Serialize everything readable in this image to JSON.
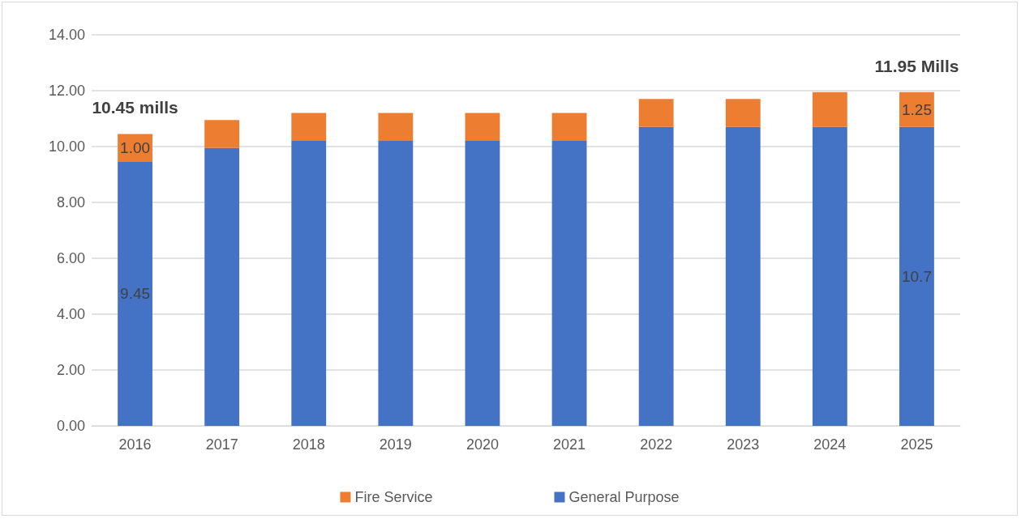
{
  "chart_data": {
    "type": "bar",
    "stacked": true,
    "categories": [
      "2016",
      "2017",
      "2018",
      "2019",
      "2020",
      "2021",
      "2022",
      "2023",
      "2024",
      "2025"
    ],
    "series": [
      {
        "name": "General Purpose",
        "color": "#4472c4",
        "values": [
          9.45,
          9.95,
          10.2,
          10.2,
          10.2,
          10.2,
          10.7,
          10.7,
          10.7,
          10.7
        ],
        "value_labels": [
          "9.45",
          null,
          null,
          null,
          null,
          null,
          null,
          null,
          null,
          "10.7"
        ]
      },
      {
        "name": "Fire Service",
        "color": "#ed7d31",
        "values": [
          1.0,
          1.0,
          1.0,
          1.0,
          1.0,
          1.0,
          1.0,
          1.0,
          1.25,
          1.25
        ],
        "value_labels": [
          "1.00",
          null,
          null,
          null,
          null,
          null,
          null,
          null,
          null,
          "1.25"
        ]
      }
    ],
    "ylim": [
      0,
      14
    ],
    "yticks": [
      {
        "value": 0,
        "label": "0.00"
      },
      {
        "value": 2,
        "label": "2.00"
      },
      {
        "value": 4,
        "label": "4.00"
      },
      {
        "value": 6,
        "label": "6.00"
      },
      {
        "value": 8,
        "label": "8.00"
      },
      {
        "value": 10,
        "label": "10.00"
      },
      {
        "value": 12,
        "label": "12.00"
      },
      {
        "value": 14,
        "label": "14.00"
      }
    ],
    "grid": "y",
    "legend": "bottom",
    "annotations": [
      {
        "text": "10.45 mills",
        "x": "2016",
        "y": 10.45
      },
      {
        "text": "11.95 Mills",
        "x": "2025",
        "y": 11.95
      }
    ]
  }
}
